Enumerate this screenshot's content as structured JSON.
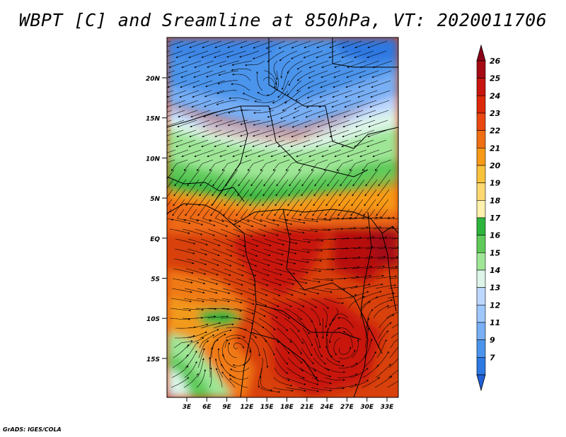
{
  "title": "WBPT [C] and Sreamline at 850hPa, VT: 2020011706",
  "credit": "GrADS: IGES/COLA",
  "y_ticks": [
    "20N",
    "15N",
    "10N",
    "5N",
    "EQ",
    "5S",
    "10S",
    "15S"
  ],
  "x_ticks": [
    "3E",
    "6E",
    "9E",
    "12E",
    "15E",
    "18E",
    "21E",
    "24E",
    "27E",
    "30E",
    "33E"
  ],
  "colorbar": {
    "labels": [
      "26",
      "25",
      "24",
      "23",
      "22",
      "21",
      "20",
      "19",
      "18",
      "17",
      "16",
      "15",
      "14",
      "13",
      "12",
      "11",
      "9",
      "7"
    ],
    "colors_top_to_bottom": [
      "#a50a14",
      "#c8140f",
      "#dc280a",
      "#ea4711",
      "#f06e14",
      "#f79a18",
      "#fac33c",
      "#fcd970",
      "#fdf1ad",
      "#2db43c",
      "#5fca5a",
      "#9ee696",
      "#dcf5e8",
      "#bed7ff",
      "#9ec8ff",
      "#78aff5",
      "#4b94eb",
      "#2d78e1"
    ],
    "triangle_top_color": "#8b0018",
    "triangle_bottom_color": "#2060d8"
  },
  "map": {
    "lat_range": [
      -20,
      24.5
    ],
    "lon_range": [
      0,
      35
    ],
    "fill_variable": "WBPT [C]",
    "overlay": "streamlines at 850hPa"
  }
}
